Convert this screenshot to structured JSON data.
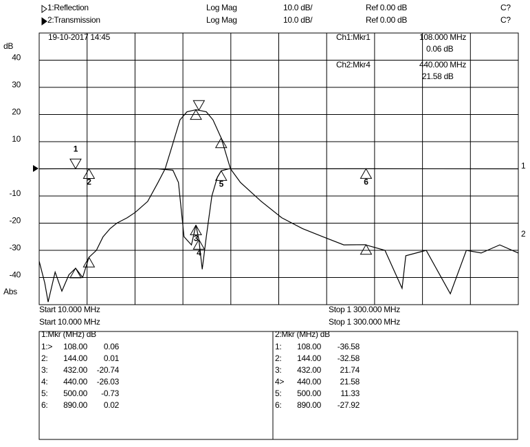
{
  "chart_data": {
    "type": "line",
    "date": "19-10-2017 14:45",
    "y_unit": "dB",
    "y_mode": "Abs",
    "xlim": [
      10,
      1300
    ],
    "ylim": [
      -50,
      50
    ],
    "yticks": [
      40,
      30,
      20,
      10,
      -10,
      -20,
      -30,
      -40
    ],
    "grid": true,
    "marker_ids": [
      1,
      2,
      3,
      4,
      5,
      6
    ],
    "marker_freqs": [
      108,
      144,
      432,
      440,
      500,
      890
    ],
    "marker_freq_labels": [
      "108.00",
      "144.00",
      "432.00",
      "440.00",
      "500.00",
      "890.00"
    ],
    "series": [
      {
        "name": "1:Reflection",
        "format": "Log Mag",
        "scale": "10.0 dB/",
        "ref": "Ref  0.00 dB",
        "status": "C?",
        "color": "#000000",
        "active": false,
        "end_label": "1",
        "start_label": "Start 10.000 MHz",
        "stop_label": "Stop 1 300.000 MHz",
        "readout": [
          "Ch1:Mkr1",
          "108.000 MHz",
          "0.06 dB"
        ],
        "active_marker": 0,
        "table_header": "1:Mkr (MHz)   dB",
        "marker_prefixes": [
          "1:>",
          "2:",
          "3:",
          "4:",
          "5:",
          "6:"
        ],
        "marker_values": [
          0.06,
          0.01,
          -20.74,
          -26.03,
          -0.73,
          0.02
        ],
        "x": [
          10,
          108,
          144,
          330,
          370,
          385,
          400,
          420,
          432,
          440,
          449,
          460,
          475,
          490,
          500,
          520,
          890,
          1300
        ],
        "values": [
          0,
          0.06,
          0.01,
          0,
          -0.5,
          -5,
          -25,
          -28,
          -20.74,
          -26.03,
          -37,
          -25,
          -10,
          -3,
          -0.73,
          0,
          0.02,
          0
        ]
      },
      {
        "name": "2:Transmission",
        "format": "Log Mag",
        "scale": "10.0 dB/",
        "ref": "Ref  0.00 dB",
        "status": "C?",
        "color": "#000000",
        "active": true,
        "end_label": "2",
        "start_label": "Start 10.000 MHz",
        "stop_label": "Stop 1 300.000 MHz",
        "readout": [
          "Ch2:Mkr4",
          "440.000 MHz",
          "21.58 dB"
        ],
        "active_marker": 3,
        "table_header": "2:Mkr (MHz)   dB",
        "marker_prefixes": [
          "1:",
          "2:",
          "3:",
          "4>",
          "5:",
          "6:"
        ],
        "marker_values": [
          -36.58,
          -32.58,
          21.74,
          21.58,
          11.33,
          -27.92
        ],
        "x": [
          10,
          25,
          34,
          53,
          71,
          90,
          108,
          127,
          144,
          164,
          182,
          201,
          219,
          247,
          269,
          302,
          330,
          349,
          367,
          389,
          408,
          432,
          440,
          460,
          478,
          500,
          525,
          552,
          608,
          663,
          719,
          774,
          830,
          887,
          941,
          987,
          997,
          1052,
          1117,
          1160,
          1200,
          1250,
          1300
        ],
        "values": [
          -34,
          -42,
          -49,
          -38,
          -45,
          -39,
          -36.58,
          -40,
          -32.58,
          -30,
          -25,
          -22,
          -20,
          -18,
          -16,
          -12,
          -5,
          0,
          8,
          18,
          21,
          21.74,
          21.58,
          21,
          18,
          11.33,
          0,
          -5,
          -12,
          -18,
          -22,
          -25,
          -28,
          -27.92,
          -30,
          -44,
          -32,
          -30,
          -46,
          -30,
          -31,
          -28,
          -31
        ]
      }
    ]
  }
}
